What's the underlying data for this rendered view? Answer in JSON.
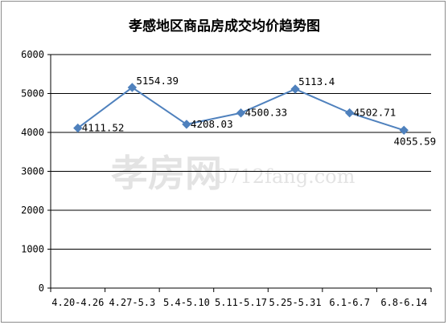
{
  "chart_data": {
    "type": "line",
    "title": "孝感地区商品房成交均价趋势图",
    "categories": [
      "4.20-4.26",
      "4.27-5.3",
      "5.4-5.10",
      "5.11-5.17",
      "5.25-5.31",
      "6.1-6.7",
      "6.8-6.14"
    ],
    "values": [
      4111.52,
      5154.39,
      4208.03,
      4500.33,
      5113.4,
      4502.71,
      4055.59
    ],
    "data_labels": [
      "4111.52",
      "5154.39",
      "4208.03",
      "4500.33",
      "5113.4",
      "4502.71",
      "4055.59"
    ],
    "ylim": [
      0,
      6000
    ],
    "yticks": [
      "0",
      "1000",
      "2000",
      "3000",
      "4000",
      "5000",
      "6000"
    ],
    "grid": true,
    "legend": "none",
    "line_color": "#4f81bd",
    "marker_color": "#4f81bd",
    "marker": "diamond",
    "watermark": {
      "cn": "孝房网",
      "url": "0712fang.com"
    }
  }
}
